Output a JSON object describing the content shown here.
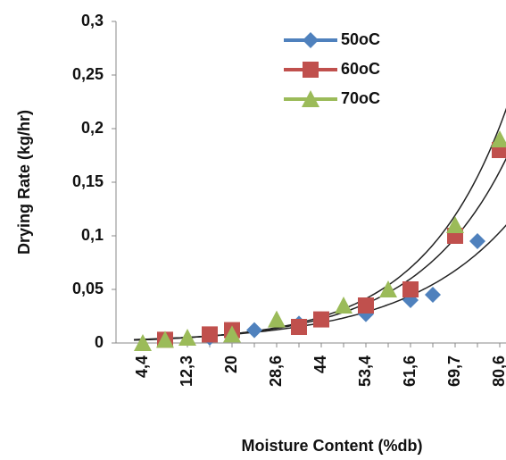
{
  "chart_data": {
    "type": "line",
    "x_label": "Moisture Content (%db)",
    "y_label": "Drying Rate (kg/hr)",
    "categories": [
      "4,4",
      null,
      "12,3",
      null,
      "20",
      null,
      "28,6",
      null,
      "44",
      null,
      "53,4",
      null,
      "61,6",
      null,
      "69,7",
      null,
      "80,6"
    ],
    "series": [
      {
        "name": "50oC",
        "color": "#4f81bd",
        "marker": "diamond",
        "values": [
          null,
          null,
          null,
          0.005,
          null,
          0.012,
          null,
          0.018,
          0.022,
          null,
          0.027,
          null,
          0.04,
          0.045,
          null,
          0.095,
          null
        ]
      },
      {
        "name": "60oC",
        "color": "#c0504d",
        "marker": "square",
        "values": [
          null,
          0.003,
          null,
          0.008,
          0.012,
          null,
          null,
          0.015,
          0.022,
          null,
          0.035,
          null,
          0.05,
          null,
          0.1,
          null,
          0.18
        ]
      },
      {
        "name": "70oC",
        "color": "#9bbb59",
        "marker": "triangle",
        "values": [
          0,
          0.003,
          0.005,
          null,
          0.008,
          null,
          0.022,
          null,
          null,
          0.035,
          null,
          0.05,
          null,
          null,
          0.11,
          null,
          0.19
        ]
      }
    ],
    "ylim": [
      0,
      0.3
    ],
    "yticks": [
      0,
      {
        "value": 0.05,
        "label": "0,05"
      },
      {
        "value": 0.1,
        "label": "0,1"
      },
      {
        "value": 0.15,
        "label": "0,15"
      },
      {
        "value": 0.2,
        "label": "0,2"
      },
      {
        "value": 0.25,
        "label": "0,25"
      },
      {
        "value": 0.3,
        "label": "0,3"
      }
    ],
    "grid": false,
    "legend": "top"
  }
}
